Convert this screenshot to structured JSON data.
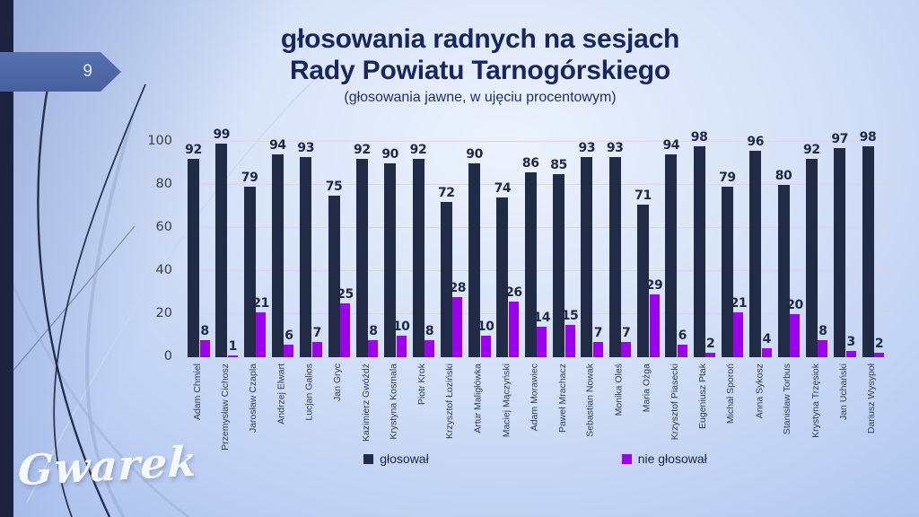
{
  "slide": {
    "page_number": "9"
  },
  "title": {
    "line1": "głosowania radnych na sesjach",
    "line2": "Rady Powiatu Tarnogórskiego",
    "subtitle": "(głosowania jawne, w ujęciu procentowym)"
  },
  "watermark": "Gwarek",
  "colors": {
    "voted_bar": "#222b46",
    "not_voted_bar": "#9b00ec",
    "banner": "#4d67a4",
    "left_strip": "#1b2341",
    "title_text": "#17265e",
    "gridline": "#ded8c8"
  },
  "chart_data": {
    "type": "bar",
    "title": "głosowania radnych na sesjach Rady Powiatu Tarnogórskiego",
    "subtitle": "(głosowania jawne, w ujęciu procentowym)",
    "categories": [
      "Adam Chmiel",
      "Przemysław Cichosz",
      "Jarosław Czapla",
      "Andrzej Elwart",
      "Lucjan Galios",
      "Jan Gryc",
      "Kazimierz Gwóźdź",
      "Krystyna Kosmala",
      "Piotr Krok",
      "Krzysztof Łoziński",
      "Artur Maligłówka",
      "Maciej Mączyński",
      "Adam Morawiec",
      "Paweł Mrachacz",
      "Sebastian Nowak",
      "Monika Oleś",
      "Maria Ożga",
      "Krzysztof Piasecki",
      "Eugeniusz Ptak",
      "Michał Sporoń",
      "Anna Sykosz",
      "Stanisław Torbus",
      "Krystyna Trzęsiok",
      "Jan Uchański",
      "Dariusz Wysypoł"
    ],
    "series": [
      {
        "name": "głosował",
        "color": "#222b46",
        "values": [
          92,
          99,
          79,
          94,
          93,
          75,
          92,
          90,
          92,
          72,
          90,
          74,
          86,
          85,
          93,
          93,
          71,
          94,
          98,
          79,
          96,
          80,
          92,
          97,
          98
        ]
      },
      {
        "name": "nie głosował",
        "color": "#9b00ec",
        "values": [
          8,
          1,
          21,
          6,
          7,
          25,
          8,
          10,
          8,
          28,
          10,
          26,
          14,
          15,
          7,
          7,
          29,
          6,
          2,
          21,
          4,
          20,
          8,
          3,
          2
        ]
      }
    ],
    "ylim": [
      0,
      100
    ],
    "yticks": [
      0,
      20,
      40,
      60,
      80,
      100
    ],
    "grid": true,
    "legend_position": "bottom",
    "xlabel": "",
    "ylabel": ""
  }
}
